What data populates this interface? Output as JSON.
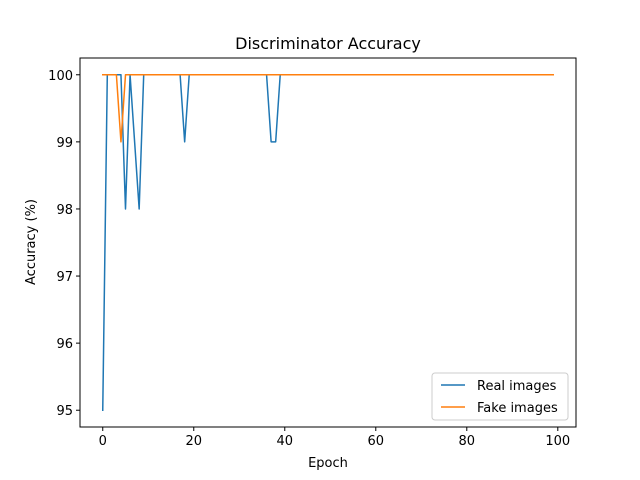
{
  "chart_data": {
    "type": "line",
    "title": "Discriminator Accuracy",
    "xlabel": "Epoch",
    "ylabel": "Accuracy (%)",
    "xlim": [
      -5,
      104
    ],
    "ylim": [
      94.75,
      100.25
    ],
    "xticks": [
      0,
      20,
      40,
      60,
      80,
      100
    ],
    "yticks": [
      95,
      96,
      97,
      98,
      99,
      100
    ],
    "grid": false,
    "legend_position": "lower-right",
    "series": [
      {
        "name": "Real images",
        "color": "#1f77b4",
        "x": [
          0,
          1,
          2,
          3,
          4,
          5,
          6,
          7,
          8,
          9,
          10,
          11,
          12,
          13,
          14,
          15,
          16,
          17,
          18,
          19,
          20,
          21,
          22,
          23,
          24,
          25,
          26,
          27,
          28,
          29,
          30,
          31,
          32,
          33,
          34,
          35,
          36,
          37,
          38,
          39,
          40,
          41,
          42,
          43,
          44,
          45,
          46,
          47,
          48,
          49,
          50,
          51,
          52,
          53,
          54,
          55,
          56,
          57,
          58,
          59,
          60,
          61,
          62,
          63,
          64,
          65,
          66,
          67,
          68,
          69,
          70,
          71,
          72,
          73,
          74,
          75,
          76,
          77,
          78,
          79,
          80,
          81,
          82,
          83,
          84,
          85,
          86,
          87,
          88,
          89,
          90,
          91,
          92,
          93,
          94,
          95,
          96,
          97,
          98,
          99
        ],
        "values": [
          95,
          100,
          100,
          100,
          100,
          98,
          100,
          99,
          98,
          100,
          100,
          100,
          100,
          100,
          100,
          100,
          100,
          100,
          99,
          100,
          100,
          100,
          100,
          100,
          100,
          100,
          100,
          100,
          100,
          100,
          100,
          100,
          100,
          100,
          100,
          100,
          100,
          99,
          99,
          100,
          100,
          100,
          100,
          100,
          100,
          100,
          100,
          100,
          100,
          100,
          100,
          100,
          100,
          100,
          100,
          100,
          100,
          100,
          100,
          100,
          100,
          100,
          100,
          100,
          100,
          100,
          100,
          100,
          100,
          100,
          100,
          100,
          100,
          100,
          100,
          100,
          100,
          100,
          100,
          100,
          100,
          100,
          100,
          100,
          100,
          100,
          100,
          100,
          100,
          100,
          100,
          100,
          100,
          100,
          100,
          100,
          100,
          100,
          100,
          100
        ]
      },
      {
        "name": "Fake images",
        "color": "#ff7f0e",
        "x": [
          0,
          1,
          2,
          3,
          4,
          5,
          6,
          7,
          8,
          9,
          10,
          11,
          12,
          13,
          14,
          15,
          16,
          17,
          18,
          19,
          20,
          21,
          22,
          23,
          24,
          25,
          26,
          27,
          28,
          29,
          30,
          31,
          32,
          33,
          34,
          35,
          36,
          37,
          38,
          39,
          40,
          41,
          42,
          43,
          44,
          45,
          46,
          47,
          48,
          49,
          50,
          51,
          52,
          53,
          54,
          55,
          56,
          57,
          58,
          59,
          60,
          61,
          62,
          63,
          64,
          65,
          66,
          67,
          68,
          69,
          70,
          71,
          72,
          73,
          74,
          75,
          76,
          77,
          78,
          79,
          80,
          81,
          82,
          83,
          84,
          85,
          86,
          87,
          88,
          89,
          90,
          91,
          92,
          93,
          94,
          95,
          96,
          97,
          98,
          99
        ],
        "values": [
          100,
          100,
          100,
          100,
          99,
          100,
          100,
          100,
          100,
          100,
          100,
          100,
          100,
          100,
          100,
          100,
          100,
          100,
          100,
          100,
          100,
          100,
          100,
          100,
          100,
          100,
          100,
          100,
          100,
          100,
          100,
          100,
          100,
          100,
          100,
          100,
          100,
          100,
          100,
          100,
          100,
          100,
          100,
          100,
          100,
          100,
          100,
          100,
          100,
          100,
          100,
          100,
          100,
          100,
          100,
          100,
          100,
          100,
          100,
          100,
          100,
          100,
          100,
          100,
          100,
          100,
          100,
          100,
          100,
          100,
          100,
          100,
          100,
          100,
          100,
          100,
          100,
          100,
          100,
          100,
          100,
          100,
          100,
          100,
          100,
          100,
          100,
          100,
          100,
          100,
          100,
          100,
          100,
          100,
          100,
          100,
          100,
          100,
          100,
          100
        ]
      }
    ]
  }
}
